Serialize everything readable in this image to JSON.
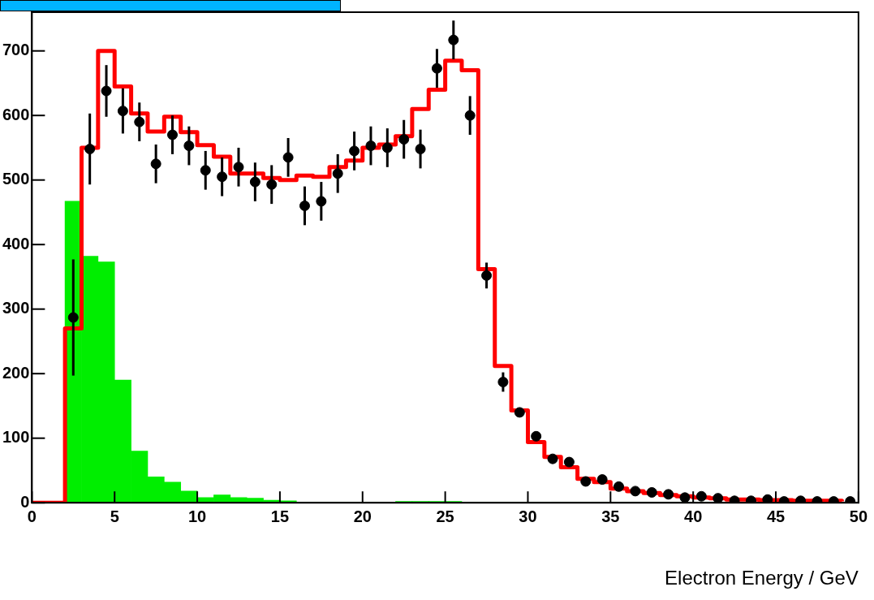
{
  "chart_data": {
    "type": "histogram",
    "xlabel": "Electron Energy / GeV",
    "bins": [
      0,
      1,
      2,
      3,
      4,
      5,
      6,
      7,
      8,
      9,
      10,
      11,
      12,
      13,
      14,
      15,
      16,
      17,
      18,
      19,
      20,
      21,
      22,
      23,
      24,
      25,
      26,
      27,
      28,
      29,
      30,
      31,
      32,
      33,
      34,
      35,
      36,
      37,
      38,
      39,
      40,
      41,
      42,
      43,
      44,
      45,
      46,
      47,
      48,
      49,
      50
    ],
    "series": [
      {
        "color": "#00ee00",
        "values": [
          0,
          0,
          467,
          382,
          373,
          190,
          80,
          40,
          32,
          18,
          8,
          12,
          8,
          7,
          4,
          3,
          0,
          0,
          0,
          0,
          0,
          0,
          2,
          2,
          2,
          2,
          0,
          0,
          0,
          0,
          0,
          0,
          0,
          0,
          0,
          0,
          0,
          0,
          0,
          0,
          0,
          0,
          0,
          0,
          0,
          0,
          0,
          0,
          0,
          0
        ]
      },
      {
        "type": "step",
        "color": "#ff0000",
        "x": [
          0,
          1,
          2,
          3,
          4,
          5,
          6,
          7,
          8,
          9,
          10,
          11,
          12,
          13,
          14,
          15,
          16,
          17,
          18,
          19,
          20,
          21,
          22,
          23,
          24,
          25,
          26,
          27,
          28,
          29,
          30,
          31,
          32,
          33,
          34,
          35,
          36,
          37,
          38,
          39,
          40,
          41,
          42,
          43,
          44,
          45,
          46,
          47,
          48,
          49
        ],
        "values": [
          0,
          0,
          270,
          550,
          700,
          645,
          603,
          575,
          598,
          574,
          554,
          536,
          510,
          510,
          503,
          500,
          507,
          505,
          520,
          530,
          550,
          555,
          568,
          610,
          640,
          685,
          670,
          362,
          212,
          143,
          94,
          71,
          55,
          37,
          32,
          22,
          18,
          15,
          12,
          10,
          8,
          7,
          5,
          5,
          4,
          4,
          3,
          3,
          3,
          2
        ]
      },
      {
        "type": "scatter",
        "color": "#000000",
        "marker": "circle",
        "x": [
          2.5,
          3.5,
          4.5,
          5.5,
          6.5,
          7.5,
          8.5,
          9.5,
          10.5,
          11.5,
          12.5,
          13.5,
          14.5,
          15.5,
          16.5,
          17.5,
          18.5,
          19.5,
          20.5,
          21.5,
          22.5,
          23.5,
          24.5,
          25.5,
          26.5,
          27.5,
          28.5,
          29.5,
          30.5,
          31.5,
          32.5,
          33.5,
          34.5,
          35.5,
          36.5,
          37.5,
          38.5,
          39.5,
          40.5,
          41.5,
          42.5,
          43.5,
          44.5,
          45.5,
          46.5,
          47.5,
          48.5,
          49.5
        ],
        "values": [
          287,
          548,
          638,
          607,
          590,
          525,
          570,
          553,
          515,
          505,
          520,
          497,
          493,
          535,
          460,
          467,
          510,
          545,
          553,
          550,
          563,
          548,
          673,
          717,
          600,
          352,
          187,
          140,
          103,
          68,
          63,
          33,
          36,
          25,
          18,
          16,
          13,
          8,
          10,
          7,
          3,
          3,
          5,
          2,
          3,
          2,
          2,
          2
        ],
        "errors": [
          90,
          55,
          40,
          35,
          30,
          30,
          30,
          30,
          30,
          30,
          30,
          30,
          30,
          30,
          30,
          30,
          30,
          30,
          30,
          30,
          30,
          30,
          30,
          30,
          30,
          20,
          15,
          null,
          null,
          null,
          null,
          null,
          null,
          null,
          null,
          null,
          null,
          null,
          null,
          null,
          null,
          null,
          null,
          null,
          null,
          null,
          null,
          null
        ]
      }
    ],
    "xlim": [
      0,
      50
    ],
    "xticks": [
      0,
      5,
      10,
      15,
      20,
      25,
      30,
      35,
      40,
      45,
      50
    ],
    "ylim": [
      0,
      760
    ],
    "yticks": [
      0,
      100,
      200,
      300,
      400,
      500,
      600,
      700
    ],
    "grid": false,
    "legend": false
  }
}
